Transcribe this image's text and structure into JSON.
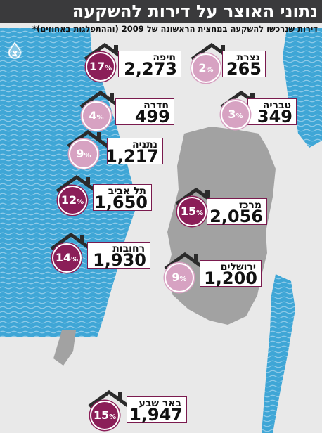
{
  "title": "נתוני האוצר על דירות להשקעה",
  "subtitle": "דירות שנרכשו להשקעה במחצית הראשונה של 2009 (וההתפלגות באחוזים)*",
  "north_label": "צ",
  "percent_symbol": "%",
  "colors": {
    "header": "#3a3a3c",
    "sea": "#3fa6d6",
    "land": "#a2a2a2",
    "accent_dark": "#8b1e58",
    "accent_light": "#d7a2c2",
    "card_border": "#7a1a4e"
  },
  "cities": [
    {
      "id": "haifa",
      "name": "חיפה",
      "count": "2,273",
      "pct": "17",
      "tone": "dark"
    },
    {
      "id": "nazareth",
      "name": "נצרת",
      "count": "265",
      "pct": "2",
      "tone": "light"
    },
    {
      "id": "hadera",
      "name": "חדרה",
      "count": "499",
      "pct": "4",
      "tone": "light"
    },
    {
      "id": "tiberias",
      "name": "טבריה",
      "count": "349",
      "pct": "3",
      "tone": "light"
    },
    {
      "id": "netanya",
      "name": "נתניה",
      "count": "1,217",
      "pct": "9",
      "tone": "light"
    },
    {
      "id": "tel-aviv",
      "name": "תל אביב",
      "count": "1,650",
      "pct": "12",
      "tone": "dark"
    },
    {
      "id": "center",
      "name": "מרכז",
      "count": "2,056",
      "pct": "15",
      "tone": "dark"
    },
    {
      "id": "rehovot",
      "name": "רחובות",
      "count": "1,930",
      "pct": "14",
      "tone": "dark"
    },
    {
      "id": "jerusalem",
      "name": "ירושלים",
      "count": "1,200",
      "pct": "9",
      "tone": "light"
    },
    {
      "id": "beer-sheva",
      "name": "באר שבע",
      "count": "1,947",
      "pct": "15",
      "tone": "dark"
    }
  ]
}
